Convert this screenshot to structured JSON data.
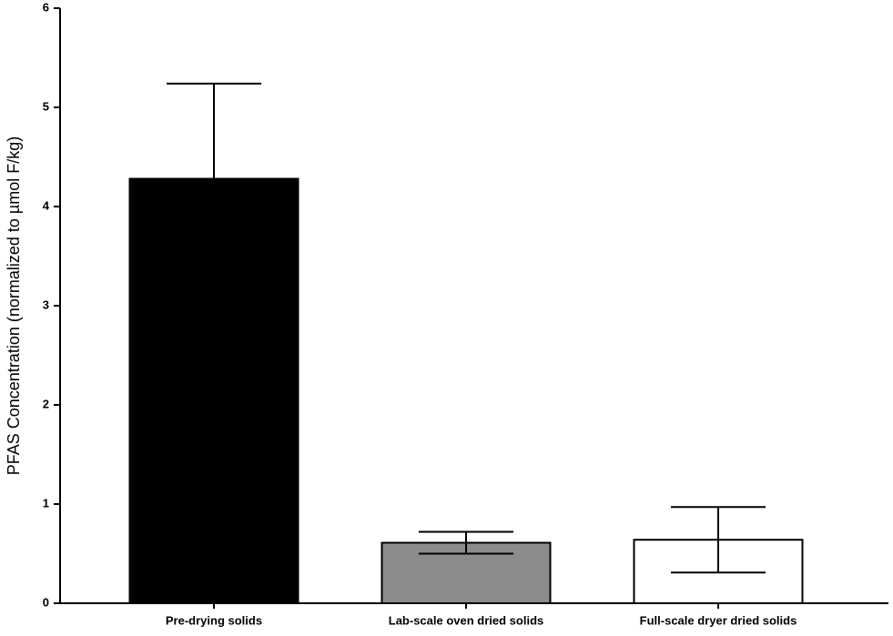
{
  "chart_data": {
    "type": "bar",
    "ylabel": "PFAS Concentration (normalized to µmol F/kg)",
    "categories": [
      "Pre-drying solids",
      "Lab-scale oven dried solids",
      "Full-scale dryer dried solids"
    ],
    "values": [
      4.28,
      0.61,
      0.64
    ],
    "errors": [
      0.96,
      0.11,
      0.33
    ],
    "colors": [
      "#000000",
      "#8c8c8c",
      "#ffffff"
    ],
    "ylim": [
      0,
      6
    ],
    "yticks": [
      0,
      1,
      2,
      3,
      4,
      5,
      6
    ]
  }
}
